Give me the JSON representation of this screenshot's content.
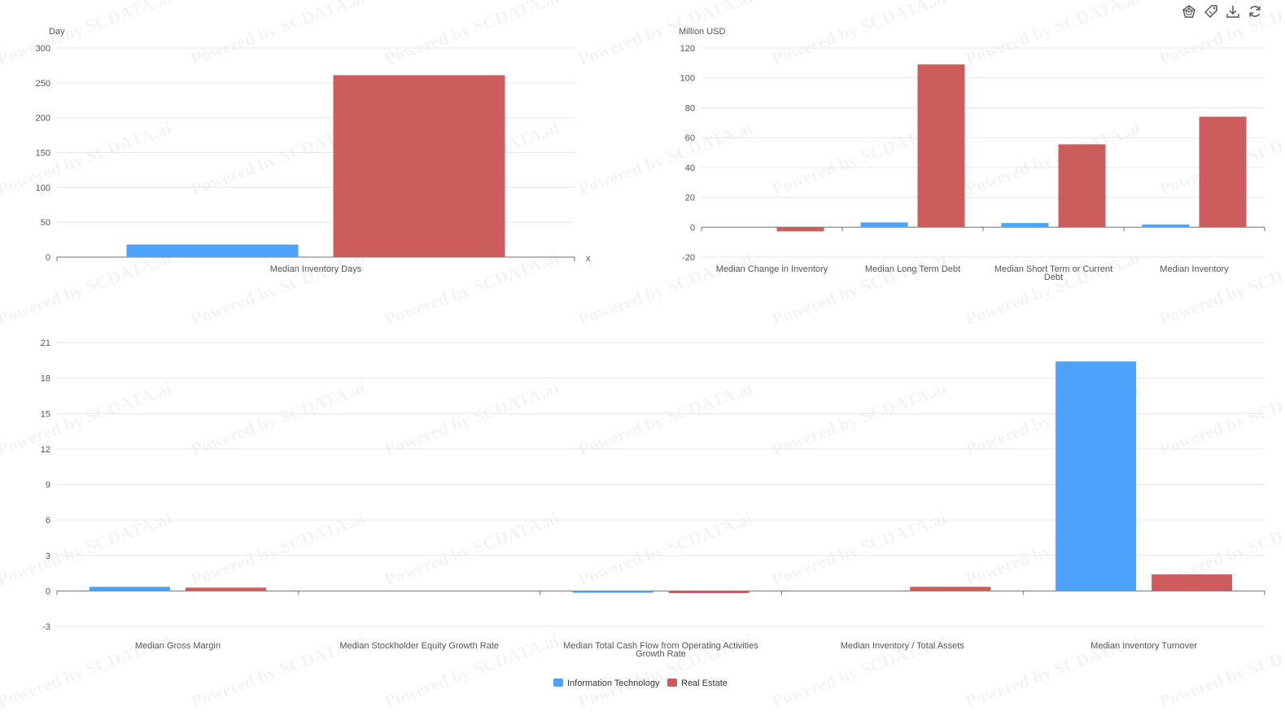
{
  "watermark": "Powered by SCDATA.ai",
  "colors": {
    "series_a": "#4da3fb",
    "series_b": "#cd5c5c",
    "grid": "#e3e6f2",
    "axis": "#6e7079"
  },
  "toolbar": [
    {
      "name": "radar-icon"
    },
    {
      "name": "tag-icon"
    },
    {
      "name": "download-icon"
    },
    {
      "name": "refresh-icon"
    }
  ],
  "legend": [
    {
      "label": "Information Technology",
      "color": "#4da3fb"
    },
    {
      "label": "Real Estate",
      "color": "#cd5c5c"
    }
  ],
  "chart_data": [
    {
      "type": "bar",
      "unit": "Day",
      "x_axis_name": "x",
      "ylim": [
        0,
        300
      ],
      "yticks": [
        0,
        50,
        100,
        150,
        200,
        250,
        300
      ],
      "categories": [
        "Median Inventory Days"
      ],
      "series": [
        {
          "name": "Information Technology",
          "values": [
            18
          ]
        },
        {
          "name": "Real Estate",
          "values": [
            261
          ]
        }
      ],
      "grid": true
    },
    {
      "type": "bar",
      "unit": "Million USD",
      "ylim": [
        -20,
        120
      ],
      "yticks": [
        -20,
        0,
        20,
        40,
        60,
        80,
        100,
        120
      ],
      "categories": [
        "Median Change in Inventory",
        "Median Long Term Debt",
        "Median Short Term or Current Debt",
        "Median Inventory"
      ],
      "series": [
        {
          "name": "Information Technology",
          "values": [
            0,
            3.2,
            2.8,
            1.8
          ]
        },
        {
          "name": "Real Estate",
          "values": [
            -2.8,
            109,
            55.5,
            74
          ]
        }
      ],
      "grid": true
    },
    {
      "type": "bar",
      "unit": "",
      "ylim": [
        -3,
        21
      ],
      "yticks": [
        -3,
        0,
        3,
        6,
        9,
        12,
        15,
        18,
        21
      ],
      "categories": [
        "Median Gross Margin",
        "Median Stockholder Equity Growth Rate",
        "Median Total Cash Flow from Operating Activities Growth Rate",
        "Median Inventory / Total Assets",
        "Median Inventory Turnover"
      ],
      "series": [
        {
          "name": "Information Technology",
          "values": [
            0.35,
            0,
            -0.15,
            0,
            19.4
          ]
        },
        {
          "name": "Real Estate",
          "values": [
            0.28,
            0,
            -0.18,
            0.35,
            1.4
          ]
        }
      ],
      "grid": true
    }
  ]
}
